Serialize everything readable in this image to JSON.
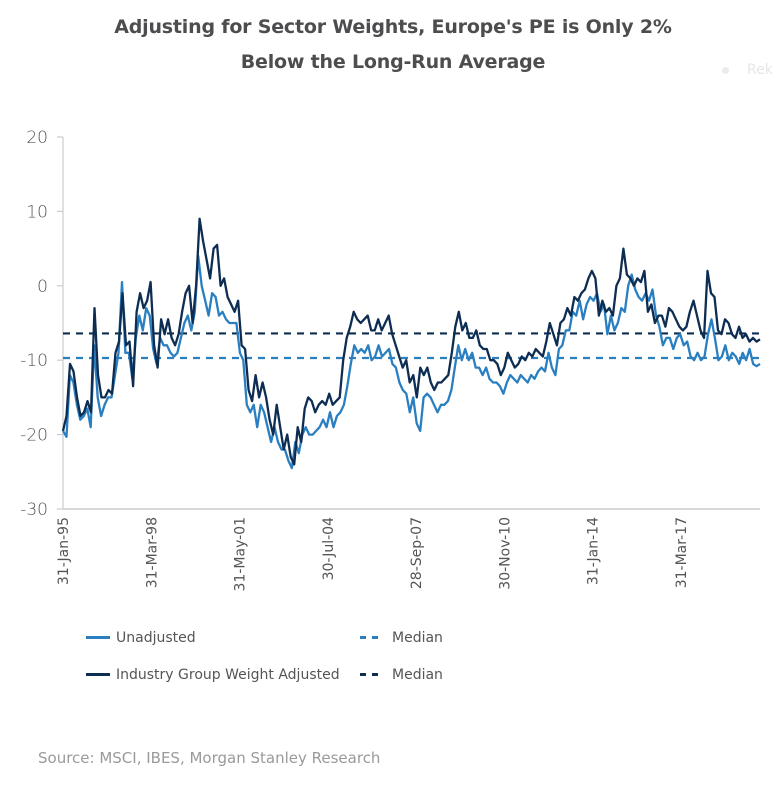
{
  "ghost_label": "Rek",
  "chart_data": {
    "type": "line",
    "title": "Adjusting for Sector Weights, Europe's PE is Only 2%",
    "subtitle": "Below the Long-Run Average",
    "xlabel": "",
    "ylabel": "",
    "ylim": [
      -30,
      20
    ],
    "yticks": [
      20,
      10,
      0,
      -10,
      -20,
      -30
    ],
    "x_start": "Jan-1995",
    "x_span_months": 300,
    "xticks": [
      {
        "label": "31-Jan-95",
        "month": 0
      },
      {
        "label": "31-Mar-98",
        "month": 38
      },
      {
        "label": "31-May-01",
        "month": 76
      },
      {
        "label": "30-Jul-04",
        "month": 114
      },
      {
        "label": "28-Sep-07",
        "month": 152
      },
      {
        "label": "30-Nov-10",
        "month": 190
      },
      {
        "label": "31-Jan-14",
        "month": 228
      },
      {
        "label": "31-Mar-17",
        "month": 266
      }
    ],
    "grid": false,
    "legend_position": "bottom",
    "series": [
      {
        "name": "Unadjusted",
        "color": "#2a7fc1",
        "style": "solid",
        "values": [
          -19.5,
          -20.3,
          -12,
          -13,
          -16,
          -18,
          -17.5,
          -16.5,
          -19,
          -8,
          -15,
          -17.5,
          -16,
          -15,
          -15,
          -12,
          -9,
          0.5,
          -9,
          -9,
          -12.5,
          -7,
          -4,
          -6,
          -3,
          -4,
          -8.5,
          -10.5,
          -7,
          -8,
          -8,
          -9,
          -9.5,
          -9,
          -7,
          -5,
          -4,
          -6,
          -3.5,
          4,
          0,
          -2,
          -4,
          -1,
          -1.5,
          -4,
          -3.5,
          -4.5,
          -5,
          -5,
          -5,
          -9,
          -10,
          -16,
          -17,
          -16,
          -19,
          -16,
          -17,
          -19,
          -21,
          -19,
          -21,
          -22,
          -22,
          -23.5,
          -24.5,
          -21,
          -22.5,
          -20,
          -19,
          -20,
          -20,
          -19.5,
          -19,
          -18,
          -19,
          -17,
          -19,
          -17.5,
          -17,
          -16,
          -13.5,
          -10.5,
          -8,
          -9,
          -8.5,
          -9,
          -8,
          -10,
          -9.5,
          -8,
          -9.5,
          -9,
          -8.5,
          -10.5,
          -11,
          -13,
          -14,
          -14.5,
          -17,
          -15,
          -18.5,
          -19.5,
          -15,
          -14.5,
          -15,
          -16,
          -17,
          -16,
          -16,
          -15.5,
          -14,
          -11,
          -8,
          -10,
          -8.5,
          -10,
          -9,
          -11,
          -11,
          -12,
          -11,
          -12.5,
          -13,
          -13,
          -13.5,
          -14.5,
          -13,
          -12,
          -12.5,
          -13,
          -12,
          -12.5,
          -13,
          -12,
          -12.5,
          -11.5,
          -11,
          -11.5,
          -9,
          -11,
          -12,
          -8.5,
          -8,
          -6,
          -6,
          -3.5,
          -4,
          -2,
          -4.5,
          -2.5,
          -1.5,
          -2,
          -1,
          -3.5,
          -2.5,
          -6.5,
          -4,
          -6,
          -5,
          -3,
          -3.5,
          0,
          1.5,
          -0.5,
          -1.5,
          -2,
          -1,
          -2,
          -0.5,
          -4,
          -5.5,
          -8,
          -7,
          -7,
          -8.5,
          -7,
          -6.5,
          -8,
          -7.5,
          -9.5,
          -10,
          -9,
          -10,
          -9.5,
          -6.5,
          -4.5,
          -7,
          -10,
          -9.5,
          -8,
          -10,
          -9,
          -9.5,
          -10.5,
          -9,
          -10,
          -8.5,
          -10.5,
          -10.8,
          -10.5
        ]
      },
      {
        "name": "Industry Group Weight Adjusted",
        "color": "#0d2d52",
        "style": "solid",
        "values": [
          -19.5,
          -17.5,
          -10.5,
          -11.5,
          -15,
          -17.5,
          -17,
          -15.5,
          -17,
          -3,
          -12,
          -15,
          -15,
          -14,
          -14.5,
          -9,
          -7.5,
          -1,
          -8,
          -7.5,
          -13.5,
          -3.5,
          -1,
          -3,
          -2,
          0.5,
          -8,
          -11,
          -4.5,
          -6.5,
          -4.5,
          -7,
          -8,
          -6.5,
          -3.5,
          -1,
          0,
          -5,
          0,
          9,
          6,
          3.5,
          1,
          5,
          5.5,
          0,
          1,
          -1.5,
          -2.5,
          -3.5,
          -2,
          -8,
          -8.5,
          -14,
          -15.5,
          -12,
          -15,
          -13,
          -15,
          -18,
          -20,
          -16,
          -19,
          -22,
          -20,
          -23,
          -24,
          -19,
          -21,
          -16.5,
          -15,
          -15.5,
          -17,
          -16,
          -15.5,
          -16,
          -14.5,
          -16,
          -15.5,
          -15,
          -10,
          -7,
          -5.5,
          -3.5,
          -4.5,
          -5,
          -4.5,
          -4,
          -6,
          -6,
          -4.5,
          -6,
          -5,
          -4,
          -6.5,
          -8,
          -9.5,
          -11,
          -10,
          -13,
          -12,
          -15,
          -11,
          -12,
          -11,
          -13,
          -14,
          -13,
          -13,
          -12.5,
          -12,
          -9,
          -5.5,
          -3.5,
          -6,
          -5,
          -7,
          -7,
          -6,
          -8,
          -8.5,
          -8.5,
          -10,
          -10,
          -10.5,
          -12,
          -11,
          -9,
          -10,
          -11,
          -10.5,
          -9.5,
          -10,
          -9,
          -9.5,
          -8.5,
          -9,
          -9.5,
          -7.5,
          -5,
          -6.5,
          -8,
          -5,
          -4.5,
          -3,
          -4,
          -1.5,
          -2,
          -1,
          -0.5,
          1,
          2,
          1,
          -4,
          -2,
          -3.5,
          -3,
          -4,
          0,
          1,
          5,
          1.5,
          1,
          0,
          1,
          0.5,
          2,
          -3.5,
          -2.5,
          -5,
          -4,
          -4,
          -5.5,
          -3,
          -3.5,
          -4.5,
          -5.5,
          -6,
          -5.5,
          -3.5,
          -2,
          -4,
          -6,
          -7,
          2,
          -1,
          -1.5,
          -6,
          -6.5,
          -4.5,
          -5,
          -6.5,
          -7,
          -5.5,
          -7,
          -6.5,
          -7.5,
          -7,
          -7.5,
          -7.2
        ]
      },
      {
        "name": "Median",
        "color": "#2a7fc1",
        "style": "dashed",
        "values_constant": -9.7
      },
      {
        "name": "Median",
        "color": "#0d2d52",
        "style": "dashed",
        "values_constant": -6.4
      }
    ],
    "source": "Source: MSCI, IBES, Morgan Stanley Research"
  },
  "legend": [
    {
      "label": "Unadjusted",
      "color": "#2a7fc1",
      "style": "solid"
    },
    {
      "label": "Median",
      "color": "#2a7fc1",
      "style": "dashed"
    },
    {
      "label": "Industry Group Weight Adjusted",
      "color": "#0d2d52",
      "style": "solid"
    },
    {
      "label": "Median",
      "color": "#0d2d52",
      "style": "dashed"
    }
  ],
  "colors": {
    "unadjusted": "#2a7fc1",
    "adjusted": "#0d2d52",
    "axis": "#c8ccd1",
    "text": "#555557",
    "title": "#4d4d4f",
    "source": "#999a9c"
  }
}
